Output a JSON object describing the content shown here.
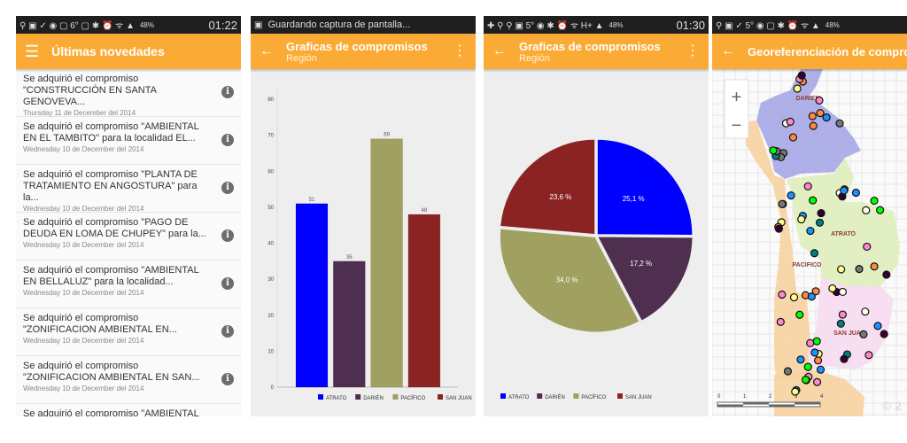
{
  "screens": [
    {
      "status": {
        "icons": "⚲ ▣ ✓ ◉ ▢ 6° ▢ ✱ ⏰ ᯤ ▲",
        "battery": "48%",
        "time": "01:22"
      },
      "appbar": {
        "title": "Últimas novedades",
        "menu_icon": "hamburger-icon"
      },
      "items": [
        {
          "text": "Se adquirió el compromiso \"CONSTRUCCIÓN EN SANTA GENOVEVA...",
          "date": "Thursday 11 de December del 2014"
        },
        {
          "text": "Se adquirió el compromiso \"AMBIENTAL EN EL TAMBITO\" para la localidad EL...",
          "date": "Wednesday 10 de December del 2014"
        },
        {
          "text": "Se adquirió el compromiso \"PLANTA DE TRATAMIENTO EN ANGOSTURA\" para la...",
          "date": "Wednesday 10 de December del 2014"
        },
        {
          "text": "Se adquirió el compromiso \"PAGO DE DEUDA EN LOMA DE CHUPEY\" para la...",
          "date": "Wednesday 10 de December del 2014"
        },
        {
          "text": "Se adquirió el compromiso \"AMBIENTAL EN BELLALUZ\" para la localidad...",
          "date": "Wednesday 10 de December del 2014"
        },
        {
          "text": "Se adquirió el compromiso \"ZONIFICACION AMBIENTAL EN...",
          "date": "Wednesday 10 de December del 2014"
        },
        {
          "text": "Se adquirió el compromiso \"ZONIFICACION AMBIENTAL EN SAN...",
          "date": "Wednesday 10 de December del 2014"
        },
        {
          "text": "Se adquirió el compromiso \"AMBIENTAL",
          "date": ""
        }
      ],
      "info_icon": "i"
    },
    {
      "status": {
        "notification": "Guardando captura de pantalla..."
      },
      "appbar": {
        "title": "Graficas de compromisos",
        "subtitle": "Región"
      }
    },
    {
      "status": {
        "icons": "✚ ⚲ ⚲ ▣ 5° ◉ ✱ ⏰ ᯤ H+ ▲",
        "battery": "48%",
        "time": "01:30"
      },
      "appbar": {
        "title": "Graficas de compromisos",
        "subtitle": "Región"
      }
    },
    {
      "status": {
        "icons": "⚲ ▣ ✓ 5° ◉ ▢ ✱ ⏰ ᯤ ▲",
        "battery": "48%"
      },
      "appbar": {
        "title": "Georeferenciación de compromisos"
      },
      "map": {
        "zoom_in": "+",
        "zoom_out": "−",
        "regions": [
          "DARIEN",
          "ATRATO",
          "PACIFICO",
          "SAN JUAN"
        ],
        "scale_labels": [
          "0",
          "1",
          "2",
          "3",
          "4"
        ],
        "copyright": "© 2"
      }
    }
  ],
  "chart_data": [
    {
      "type": "bar",
      "categories": [
        "ATRATO",
        "DARIÉN",
        "PACÍFICO",
        "SAN JUAN"
      ],
      "values": [
        51,
        35,
        69,
        48
      ],
      "colors": [
        "#0000ff",
        "#4f2f4f",
        "#a0a060",
        "#8b2323"
      ],
      "ylim": [
        0,
        80
      ],
      "yticks": [
        0,
        10,
        20,
        30,
        40,
        50,
        60,
        70,
        80
      ],
      "legend": "bottom-right",
      "grid": false
    },
    {
      "type": "pie",
      "categories": [
        "ATRATO",
        "DARIÉN",
        "PACÍFICO",
        "SAN JUAN"
      ],
      "values": [
        25.1,
        17.2,
        34.0,
        23.6
      ],
      "labels": [
        "25,1 %",
        "17,2 %",
        "34,0 %",
        "23,6 %"
      ],
      "colors": [
        "#0000ff",
        "#4f2f4f",
        "#a0a060",
        "#8b2323"
      ],
      "legend": "bottom-left"
    }
  ],
  "colors": {
    "accent": "#fbab35",
    "statusbar": "#1f1f1f"
  }
}
